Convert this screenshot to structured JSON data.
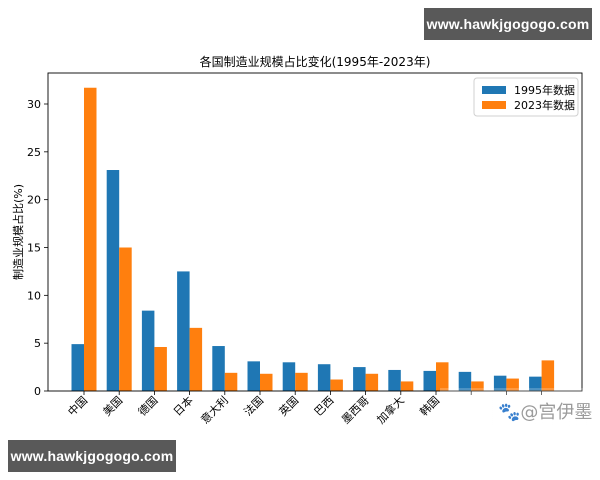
{
  "watermarks": {
    "top": "www.hawkjgogogo.com",
    "bottom": "www.hawkjgogogo.com",
    "baidu": "@宫伊墨"
  },
  "chart_data": {
    "type": "bar",
    "title": "各国制造业规模占比变化(1995年-2023年)",
    "xlabel": "",
    "ylabel": "制造业规模占比(%)",
    "ylim": [
      0,
      33.5
    ],
    "yticks": [
      0,
      5,
      10,
      15,
      20,
      25,
      30
    ],
    "grid": false,
    "legend_position": "upper right",
    "categories": [
      "中国",
      "美国",
      "德国",
      "日本",
      "意大利",
      "法国",
      "英国",
      "巴西",
      "墨西哥",
      "加拿大",
      "韩国",
      "",
      "",
      ""
    ],
    "series": [
      {
        "name": "1995年数据",
        "color": "#1f77b4",
        "values": [
          4.9,
          23.1,
          8.4,
          12.5,
          4.7,
          3.1,
          3.0,
          2.8,
          2.5,
          2.2,
          2.1,
          2.0,
          1.6,
          1.5
        ]
      },
      {
        "name": "2023年数据",
        "color": "#ff7f0e",
        "values": [
          31.7,
          15.0,
          4.6,
          6.6,
          1.9,
          1.8,
          1.9,
          1.2,
          1.8,
          1.0,
          3.0,
          1.0,
          1.3,
          3.2
        ]
      }
    ]
  }
}
